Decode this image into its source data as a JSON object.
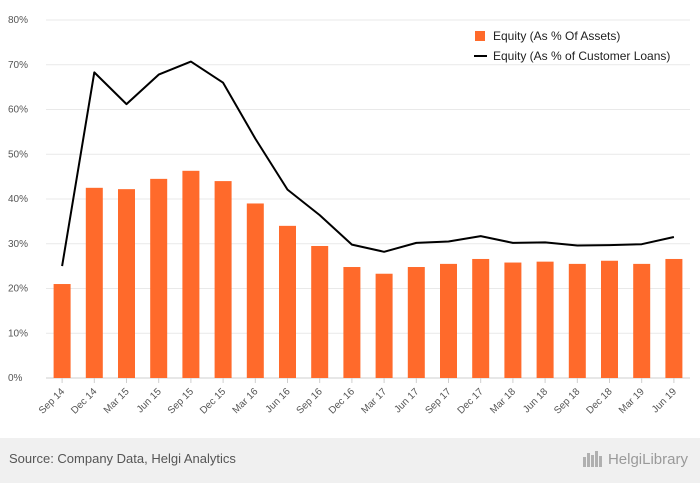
{
  "chart_data": {
    "type": "bar",
    "categories": [
      "Sep 14",
      "Dec 14",
      "Mar 15",
      "Jun 15",
      "Sep 15",
      "Dec 15",
      "Mar 16",
      "Jun 16",
      "Sep 16",
      "Dec 16",
      "Mar 17",
      "Jun 17",
      "Sep 17",
      "Dec 17",
      "Mar 18",
      "Jun 18",
      "Sep 18",
      "Dec 18",
      "Mar 19",
      "Jun 19"
    ],
    "series": [
      {
        "name": "Equity (As % Of Assets)",
        "type": "bar",
        "color": "#ff6a2b",
        "values": [
          21.0,
          42.5,
          42.2,
          44.5,
          46.3,
          44.0,
          39.0,
          34.0,
          29.5,
          24.8,
          23.3,
          24.8,
          25.5,
          26.6,
          25.8,
          26.0,
          25.5,
          26.2,
          25.5,
          26.6
        ]
      },
      {
        "name": "Equity (As % of Customer Loans)",
        "type": "line",
        "color": "#000000",
        "values": [
          25.0,
          68.3,
          61.2,
          67.8,
          70.7,
          66.0,
          53.5,
          42.1,
          36.4,
          29.8,
          28.2,
          30.2,
          30.5,
          31.7,
          30.2,
          30.3,
          29.6,
          29.7,
          29.9,
          31.5
        ]
      }
    ],
    "y_ticks": [
      "0%",
      "10%",
      "20%",
      "30%",
      "40%",
      "50%",
      "60%",
      "70%",
      "80%"
    ],
    "ylim": [
      0,
      80
    ],
    "grid": true,
    "legend_position": "top-right"
  },
  "footer": {
    "source": "Source: Company Data, Helgi Analytics",
    "brand": "HelgiLibrary"
  }
}
